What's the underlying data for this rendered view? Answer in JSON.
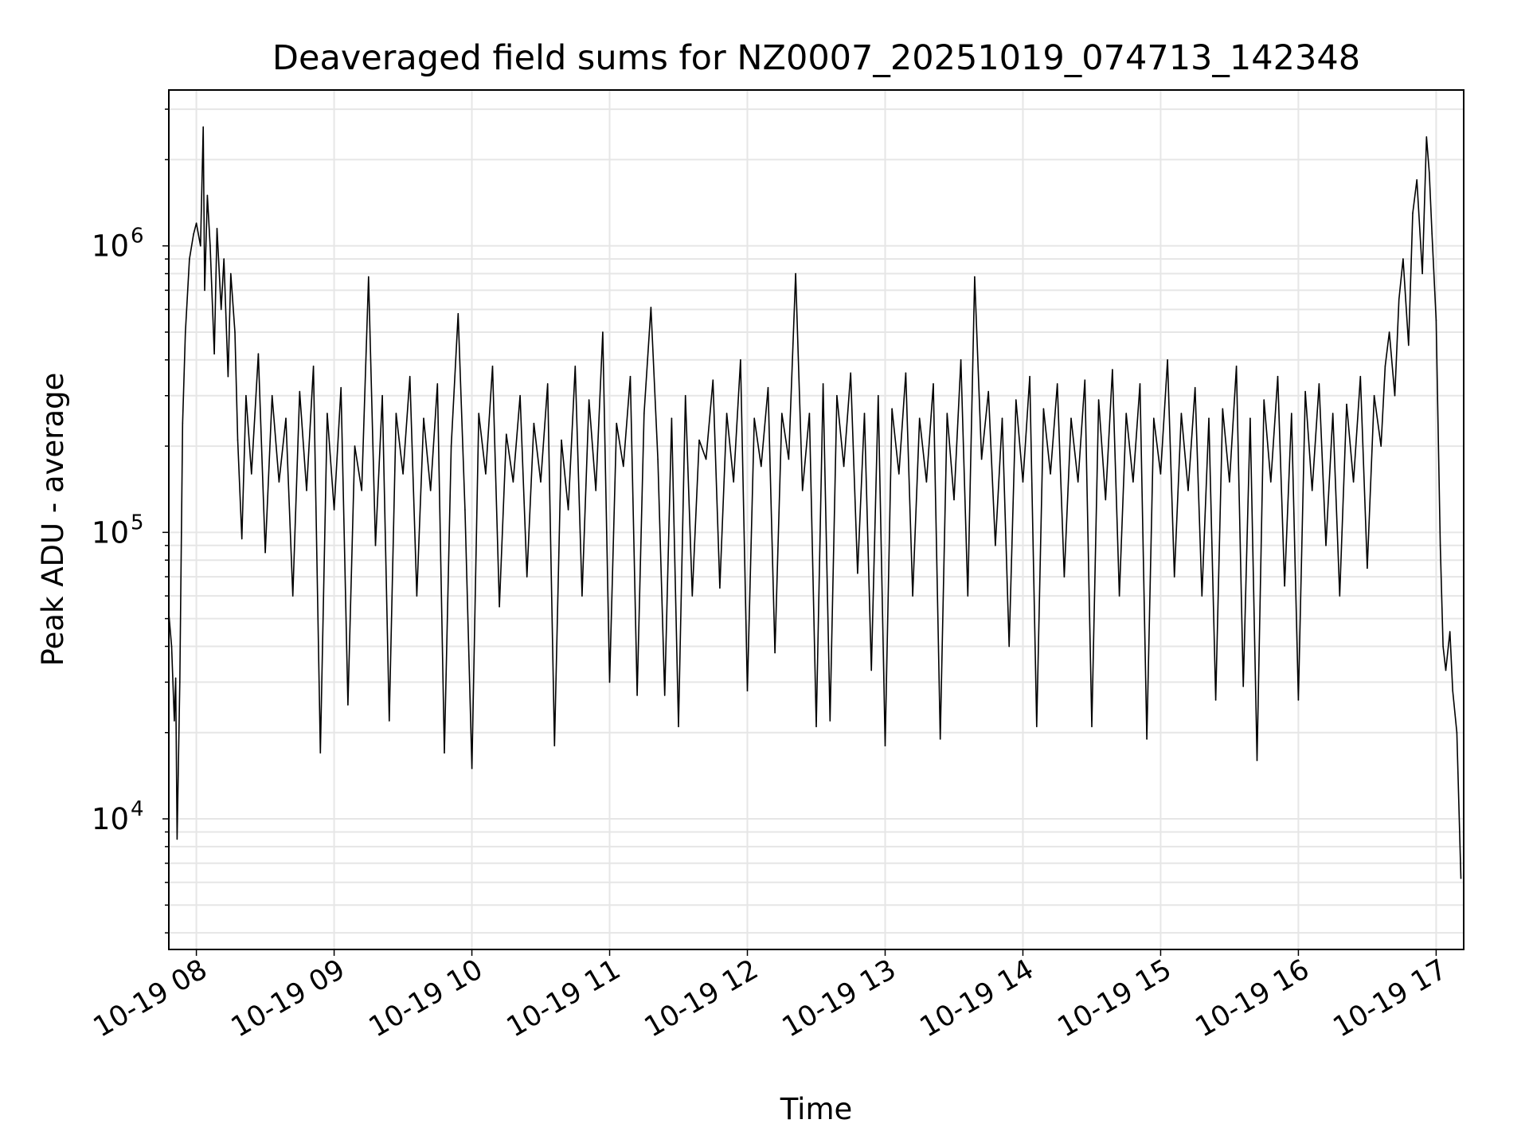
{
  "chart_data": {
    "type": "line",
    "title": "Deaveraged field sums for NZ0007_20251019_074713_142348",
    "xlabel": "Time",
    "ylabel": "Peak ADU - average",
    "yscale": "log",
    "ylim": [
      3500,
      3500000
    ],
    "xlim_hours": [
      7.8,
      17.2
    ],
    "grid": true,
    "line_color": "#000000",
    "grid_color": "#e6e6e6",
    "x_ticks": [
      {
        "hour": 8,
        "label": "10-19 08"
      },
      {
        "hour": 9,
        "label": "10-19 09"
      },
      {
        "hour": 10,
        "label": "10-19 10"
      },
      {
        "hour": 11,
        "label": "10-19 11"
      },
      {
        "hour": 12,
        "label": "10-19 12"
      },
      {
        "hour": 13,
        "label": "10-19 13"
      },
      {
        "hour": 14,
        "label": "10-19 14"
      },
      {
        "hour": 15,
        "label": "10-19 15"
      },
      {
        "hour": 16,
        "label": "10-19 16"
      },
      {
        "hour": 17,
        "label": "10-19 17"
      }
    ],
    "y_ticks": [
      {
        "value": 10000,
        "base": "10",
        "exp": "4"
      },
      {
        "value": 100000,
        "base": "10",
        "exp": "5"
      },
      {
        "value": 1000000,
        "base": "10",
        "exp": "6"
      }
    ],
    "series": [
      {
        "name": "Deaveraged field sum",
        "x_hours": [
          7.8,
          7.82,
          7.84,
          7.85,
          7.86,
          7.88,
          7.9,
          7.92,
          7.95,
          7.98,
          8.0,
          8.03,
          8.05,
          8.06,
          8.08,
          8.1,
          8.13,
          8.15,
          8.18,
          8.2,
          8.23,
          8.25,
          8.28,
          8.3,
          8.33,
          8.36,
          8.4,
          8.45,
          8.5,
          8.55,
          8.6,
          8.65,
          8.7,
          8.75,
          8.8,
          8.85,
          8.9,
          8.95,
          9.0,
          9.05,
          9.1,
          9.15,
          9.2,
          9.25,
          9.3,
          9.35,
          9.4,
          9.45,
          9.5,
          9.55,
          9.6,
          9.65,
          9.7,
          9.75,
          9.8,
          9.85,
          9.9,
          9.95,
          10.0,
          10.05,
          10.1,
          10.15,
          10.2,
          10.25,
          10.3,
          10.35,
          10.4,
          10.45,
          10.5,
          10.55,
          10.6,
          10.65,
          10.7,
          10.75,
          10.8,
          10.85,
          10.9,
          10.95,
          11.0,
          11.05,
          11.1,
          11.15,
          11.2,
          11.25,
          11.3,
          11.35,
          11.4,
          11.45,
          11.5,
          11.55,
          11.6,
          11.65,
          11.7,
          11.75,
          11.8,
          11.85,
          11.9,
          11.95,
          12.0,
          12.05,
          12.1,
          12.15,
          12.2,
          12.25,
          12.3,
          12.35,
          12.4,
          12.45,
          12.5,
          12.55,
          12.6,
          12.65,
          12.7,
          12.75,
          12.8,
          12.85,
          12.9,
          12.95,
          13.0,
          13.05,
          13.1,
          13.15,
          13.2,
          13.25,
          13.3,
          13.35,
          13.4,
          13.45,
          13.5,
          13.55,
          13.6,
          13.65,
          13.7,
          13.75,
          13.8,
          13.85,
          13.9,
          13.95,
          14.0,
          14.05,
          14.1,
          14.15,
          14.2,
          14.25,
          14.3,
          14.35,
          14.4,
          14.45,
          14.5,
          14.55,
          14.6,
          14.65,
          14.7,
          14.75,
          14.8,
          14.85,
          14.9,
          14.95,
          15.0,
          15.05,
          15.1,
          15.15,
          15.2,
          15.25,
          15.3,
          15.35,
          15.4,
          15.45,
          15.5,
          15.55,
          15.6,
          15.65,
          15.7,
          15.75,
          15.8,
          15.85,
          15.9,
          15.95,
          16.0,
          16.05,
          16.1,
          16.15,
          16.2,
          16.25,
          16.3,
          16.35,
          16.4,
          16.45,
          16.5,
          16.55,
          16.6,
          16.63,
          16.66,
          16.7,
          16.73,
          16.76,
          16.8,
          16.83,
          16.86,
          16.9,
          16.93,
          16.95,
          16.97,
          17.0,
          17.03,
          17.05,
          17.07,
          17.1,
          17.12,
          17.15,
          17.18
        ],
        "y": [
          52000,
          40000,
          22000,
          31000,
          8500,
          30000,
          240000,
          500000,
          900000,
          1100000,
          1200000,
          1000000,
          2600000,
          700000,
          1500000,
          1000000,
          420000,
          1150000,
          600000,
          900000,
          350000,
          800000,
          500000,
          210000,
          95000,
          300000,
          160000,
          420000,
          85000,
          300000,
          150000,
          250000,
          60000,
          310000,
          140000,
          380000,
          17000,
          260000,
          120000,
          320000,
          25000,
          200000,
          140000,
          780000,
          90000,
          300000,
          22000,
          260000,
          160000,
          350000,
          60000,
          250000,
          140000,
          330000,
          17000,
          200000,
          580000,
          120000,
          15000,
          260000,
          160000,
          380000,
          55000,
          220000,
          150000,
          300000,
          70000,
          240000,
          150000,
          330000,
          18000,
          210000,
          120000,
          380000,
          60000,
          290000,
          140000,
          500000,
          30000,
          240000,
          170000,
          350000,
          27000,
          260000,
          610000,
          180000,
          27000,
          250000,
          21000,
          300000,
          60000,
          210000,
          180000,
          340000,
          64000,
          260000,
          150000,
          400000,
          28000,
          250000,
          170000,
          320000,
          38000,
          260000,
          180000,
          800000,
          140000,
          260000,
          21000,
          330000,
          22000,
          300000,
          170000,
          360000,
          72000,
          260000,
          33000,
          300000,
          18000,
          270000,
          160000,
          360000,
          60000,
          250000,
          150000,
          330000,
          19000,
          260000,
          130000,
          400000,
          60000,
          780000,
          180000,
          310000,
          90000,
          250000,
          40000,
          290000,
          150000,
          350000,
          21000,
          270000,
          160000,
          330000,
          70000,
          250000,
          150000,
          340000,
          21000,
          290000,
          130000,
          370000,
          60000,
          260000,
          150000,
          330000,
          19000,
          250000,
          160000,
          400000,
          70000,
          260000,
          140000,
          320000,
          60000,
          250000,
          26000,
          270000,
          150000,
          380000,
          29000,
          250000,
          16000,
          290000,
          150000,
          350000,
          65000,
          260000,
          26000,
          310000,
          140000,
          330000,
          90000,
          260000,
          60000,
          280000,
          150000,
          350000,
          75000,
          300000,
          200000,
          380000,
          500000,
          300000,
          650000,
          900000,
          450000,
          1300000,
          1700000,
          800000,
          2400000,
          1800000,
          1100000,
          550000,
          90000,
          40000,
          33000,
          45000,
          28000,
          20000,
          6200
        ]
      }
    ]
  }
}
